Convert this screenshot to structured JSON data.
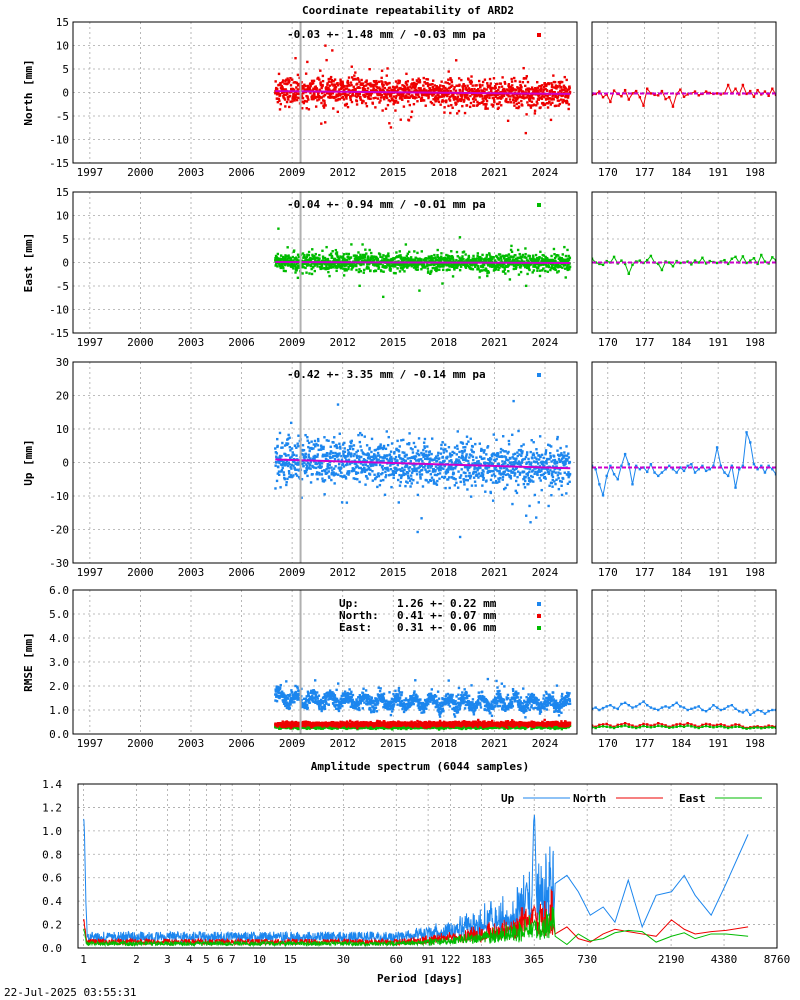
{
  "title": "Coordinate repeatability of ARD2",
  "timestamp": "22-Jul-2025 03:55:31",
  "colors": {
    "north": "#ee0000",
    "east": "#00bb00",
    "up": "#1c86ee",
    "trend": "#cc00cc",
    "rmse_up": "#1c86ee",
    "grid": "#a8a8a8"
  },
  "chart_data": [
    {
      "type": "scatter",
      "id": "north",
      "ylabel": "North [mm]",
      "ylim": [
        -15,
        15
      ],
      "yticks": [
        -15,
        -10,
        -5,
        0,
        5,
        10,
        15
      ],
      "xlim": [
        1996,
        2025.9
      ],
      "xticks": [
        1997,
        2000,
        2003,
        2006,
        2009,
        2012,
        2015,
        2018,
        2021,
        2024
      ],
      "data_span": [
        2008.0,
        2025.5
      ],
      "scatter_sd": 1.48,
      "stat_text": "-0.03 +- 1.48 mm / -0.03 mm pa",
      "trend": {
        "x": [
          2008.0,
          2025.5
        ],
        "y": [
          0.3,
          -0.3
        ]
      },
      "gap_line": 2009.5,
      "zoom": {
        "xlim": [
          167,
          202
        ],
        "xticks": [
          170,
          177,
          184,
          191,
          198
        ],
        "trend": [
          -0.2,
          -0.2
        ],
        "y": [
          -0.5,
          -0.3,
          0.2,
          -1.0,
          -0.4,
          -2.0,
          0.4,
          -0.3,
          -0.8,
          0.5,
          -1.5,
          -0.2,
          0.3,
          -1.0,
          -2.8,
          0.8,
          -0.2,
          -0.5,
          -0.6,
          0.3,
          -1.4,
          -1.0,
          -3.0,
          -0.3,
          0.6,
          -0.9,
          -0.4,
          -0.2,
          0.2,
          -0.6,
          -0.3,
          0.2,
          -0.1,
          -0.3,
          -0.2,
          -0.4,
          -0.2,
          1.6,
          -0.2,
          0.8,
          -0.4,
          1.6,
          -0.3,
          0.3,
          -0.9,
          0.5,
          -0.4,
          0.2,
          -0.7,
          0.8,
          -0.5
        ]
      }
    },
    {
      "type": "scatter",
      "id": "east",
      "ylabel": "East [mm]",
      "ylim": [
        -15,
        15
      ],
      "yticks": [
        -15,
        -10,
        -5,
        0,
        5,
        10,
        15
      ],
      "xlim": [
        1996,
        2025.9
      ],
      "xticks": [
        1997,
        2000,
        2003,
        2006,
        2009,
        2012,
        2015,
        2018,
        2021,
        2024
      ],
      "data_span": [
        2008.0,
        2025.5
      ],
      "scatter_sd": 0.94,
      "stat_text": "-0.04 +- 0.94 mm / -0.01 mm pa",
      "trend": {
        "x": [
          2008.0,
          2025.5
        ],
        "y": [
          0.1,
          -0.1
        ]
      },
      "gap_line": 2009.5,
      "zoom": {
        "xlim": [
          167,
          202
        ],
        "xticks": [
          170,
          177,
          184,
          191,
          198
        ],
        "trend": [
          0.0,
          0.0
        ],
        "y": [
          0.8,
          0.0,
          -0.3,
          -0.5,
          0.3,
          0.0,
          1.2,
          -0.2,
          0.4,
          -0.3,
          -2.4,
          -0.5,
          0.2,
          0.4,
          -0.1,
          0.5,
          1.4,
          0.0,
          -0.3,
          -1.6,
          0.2,
          0.0,
          -0.8,
          0.3,
          -0.1,
          0.0,
          0.2,
          -0.4,
          0.4,
          0.0,
          1.0,
          -0.2,
          0.3,
          0.1,
          -0.1,
          0.2,
          0.5,
          -0.3,
          0.8,
          1.2,
          0.0,
          1.3,
          -0.1,
          0.4,
          0.9,
          -0.3,
          1.6,
          0.2,
          -0.2,
          1.1,
          0.5
        ]
      }
    },
    {
      "type": "scatter",
      "id": "up",
      "ylabel": "Up [mm]",
      "ylim": [
        -30,
        30
      ],
      "yticks": [
        -30,
        -20,
        -10,
        0,
        10,
        20,
        30
      ],
      "xlim": [
        1996,
        2025.9
      ],
      "xticks": [
        1997,
        2000,
        2003,
        2006,
        2009,
        2012,
        2015,
        2018,
        2021,
        2024
      ],
      "data_span": [
        2008.0,
        2025.5
      ],
      "scatter_sd": 3.35,
      "stat_text": "-0.42 +- 3.35 mm / -0.14 mm pa",
      "trend": {
        "x": [
          2008.0,
          2025.5
        ],
        "y": [
          0.9,
          -1.7
        ]
      },
      "gap_line": 2009.5,
      "zoom": {
        "xlim": [
          167,
          202
        ],
        "xticks": [
          170,
          177,
          184,
          191,
          198
        ],
        "trend": [
          -1.5,
          -1.5
        ],
        "y": [
          -1.0,
          -2.0,
          -6.5,
          -9.8,
          -4.0,
          -1.0,
          -3.5,
          -5.0,
          -1.0,
          2.5,
          -0.5,
          -6.5,
          -1.0,
          -2.0,
          -1.5,
          -2.8,
          -0.5,
          -3.0,
          -4.0,
          -3.0,
          -2.0,
          -1.0,
          -2.0,
          -3.0,
          -1.5,
          -2.5,
          -1.0,
          -0.5,
          -3.0,
          -2.0,
          -1.0,
          -2.5,
          -2.0,
          -1.0,
          4.5,
          -1.0,
          -3.0,
          -4.0,
          -1.0,
          -7.5,
          -2.0,
          -1.0,
          9.0,
          6.0,
          -0.5,
          -2.0,
          -1.0,
          -3.0,
          -1.0,
          -2.0,
          -3.5
        ]
      }
    },
    {
      "type": "scatter",
      "id": "rmse",
      "ylabel": "RMSE [mm]",
      "ylim": [
        0,
        6
      ],
      "yticks": [
        "0.0",
        "1.0",
        "2.0",
        "3.0",
        "4.0",
        "5.0",
        "6.0"
      ],
      "xlim": [
        1996,
        2025.9
      ],
      "xticks": [
        1997,
        2000,
        2003,
        2006,
        2009,
        2012,
        2015,
        2018,
        2021,
        2024
      ],
      "data_span": [
        2008.0,
        2025.5
      ],
      "gap_line": 2009.5,
      "legend": [
        {
          "label": "Up:",
          "value": "1.26 +- 0.22 mm",
          "series": "up"
        },
        {
          "label": "North:",
          "value": "0.41 +- 0.07 mm",
          "series": "north"
        },
        {
          "label": "East:",
          "value": "0.31 +- 0.06 mm",
          "series": "east"
        }
      ],
      "means": {
        "up": 1.26,
        "north": 0.41,
        "east": 0.31
      },
      "sds": {
        "up": 0.22,
        "north": 0.07,
        "east": 0.06
      },
      "zoom": {
        "xlim": [
          167,
          202
        ],
        "xticks": [
          170,
          177,
          184,
          191,
          198
        ],
        "up": [
          1.05,
          1.1,
          1.0,
          1.08,
          1.15,
          1.2,
          1.1,
          1.05,
          1.25,
          1.3,
          1.2,
          1.1,
          1.15,
          1.25,
          1.35,
          1.2,
          1.1,
          1.05,
          1.0,
          1.1,
          1.15,
          1.1,
          1.2,
          1.3,
          1.15,
          1.1,
          1.0,
          1.05,
          1.1,
          1.15,
          1.0,
          0.95,
          1.05,
          1.2,
          1.1,
          1.0,
          1.05,
          1.15,
          1.2,
          1.05,
          0.95,
          0.9,
          1.0,
          0.8,
          0.9,
          1.0,
          0.95,
          0.85,
          0.95,
          1.0,
          1.0
        ],
        "north": [
          0.35,
          0.3,
          0.38,
          0.4,
          0.42,
          0.35,
          0.3,
          0.38,
          0.4,
          0.45,
          0.4,
          0.35,
          0.3,
          0.36,
          0.42,
          0.4,
          0.35,
          0.38,
          0.45,
          0.4,
          0.36,
          0.3,
          0.35,
          0.4,
          0.42,
          0.38,
          0.45,
          0.4,
          0.35,
          0.3,
          0.38,
          0.42,
          0.4,
          0.35,
          0.38,
          0.4,
          0.36,
          0.3,
          0.35,
          0.4,
          0.38,
          0.3,
          0.25,
          0.28,
          0.3,
          0.32,
          0.28,
          0.3,
          0.35,
          0.32,
          0.3
        ],
        "east": [
          0.28,
          0.25,
          0.3,
          0.32,
          0.3,
          0.28,
          0.25,
          0.3,
          0.32,
          0.35,
          0.3,
          0.28,
          0.25,
          0.28,
          0.33,
          0.3,
          0.28,
          0.3,
          0.34,
          0.32,
          0.3,
          0.26,
          0.28,
          0.3,
          0.33,
          0.3,
          0.35,
          0.32,
          0.28,
          0.25,
          0.3,
          0.33,
          0.3,
          0.28,
          0.3,
          0.32,
          0.28,
          0.25,
          0.28,
          0.3,
          0.3,
          0.25,
          0.22,
          0.24,
          0.26,
          0.27,
          0.24,
          0.26,
          0.28,
          0.27,
          0.26
        ]
      }
    },
    {
      "type": "line",
      "id": "spectrum",
      "title": "Amplitude spectrum (6044 samples)",
      "xlabel": "Period [days]",
      "xscale": "log",
      "xlim": [
        0.93,
        8760
      ],
      "ylim": [
        0,
        1.4
      ],
      "yticks": [
        "0.0",
        "0.2",
        "0.4",
        "0.6",
        "0.8",
        "1.0",
        "1.2",
        "1.4"
      ],
      "xticks": [
        "1",
        "2",
        "3",
        "4",
        "5",
        "6",
        "7",
        "10",
        "15",
        "30",
        "60",
        "91",
        "122",
        "183",
        "365",
        "730",
        "2190",
        "4380",
        "8760"
      ],
      "legend": [
        {
          "label": "Up",
          "series": "up"
        },
        {
          "label": "North",
          "series": "north"
        },
        {
          "label": "East",
          "series": "east"
        }
      ],
      "series": [
        {
          "name": "Up",
          "base": 0.1,
          "peaks": [
            {
              "x": 1.0,
              "y": 1.1
            },
            {
              "x": 365,
              "y": 1.1
            },
            {
              "x": 330,
              "y": 0.52
            },
            {
              "x": 400,
              "y": 0.38
            },
            {
              "x": 430,
              "y": 0.24
            }
          ],
          "tail": {
            "x": [
              480,
              560,
              650,
              760,
              900,
              1050,
              1250,
              1500,
              1800,
              2200,
              2600,
              3000,
              3700,
              4500,
              6000
            ],
            "y": [
              0.55,
              0.62,
              0.48,
              0.28,
              0.35,
              0.22,
              0.58,
              0.18,
              0.45,
              0.48,
              0.62,
              0.45,
              0.28,
              0.55,
              0.97
            ]
          }
        },
        {
          "name": "North",
          "base": 0.055,
          "peaks": [
            {
              "x": 1.0,
              "y": 0.22
            },
            {
              "x": 365,
              "y": 0.35
            },
            {
              "x": 340,
              "y": 0.2
            }
          ],
          "tail": {
            "x": [
              480,
              560,
              650,
              760,
              900,
              1050,
              1250,
              1500,
              1800,
              2200,
              2600,
              3000,
              3700,
              4500,
              6000
            ],
            "y": [
              0.12,
              0.18,
              0.08,
              0.05,
              0.12,
              0.16,
              0.14,
              0.12,
              0.1,
              0.24,
              0.16,
              0.12,
              0.14,
              0.15,
              0.18
            ]
          }
        },
        {
          "name": "East",
          "base": 0.04,
          "peaks": [
            {
              "x": 1.0,
              "y": 0.14
            },
            {
              "x": 365,
              "y": 0.22
            },
            {
              "x": 330,
              "y": 0.15
            }
          ],
          "tail": {
            "x": [
              480,
              560,
              650,
              760,
              900,
              1050,
              1250,
              1500,
              1800,
              2200,
              2600,
              3000,
              3700,
              4500,
              6000
            ],
            "y": [
              0.1,
              0.03,
              0.12,
              0.06,
              0.08,
              0.13,
              0.15,
              0.14,
              0.05,
              0.1,
              0.13,
              0.08,
              0.12,
              0.12,
              0.1
            ]
          }
        }
      ]
    }
  ]
}
